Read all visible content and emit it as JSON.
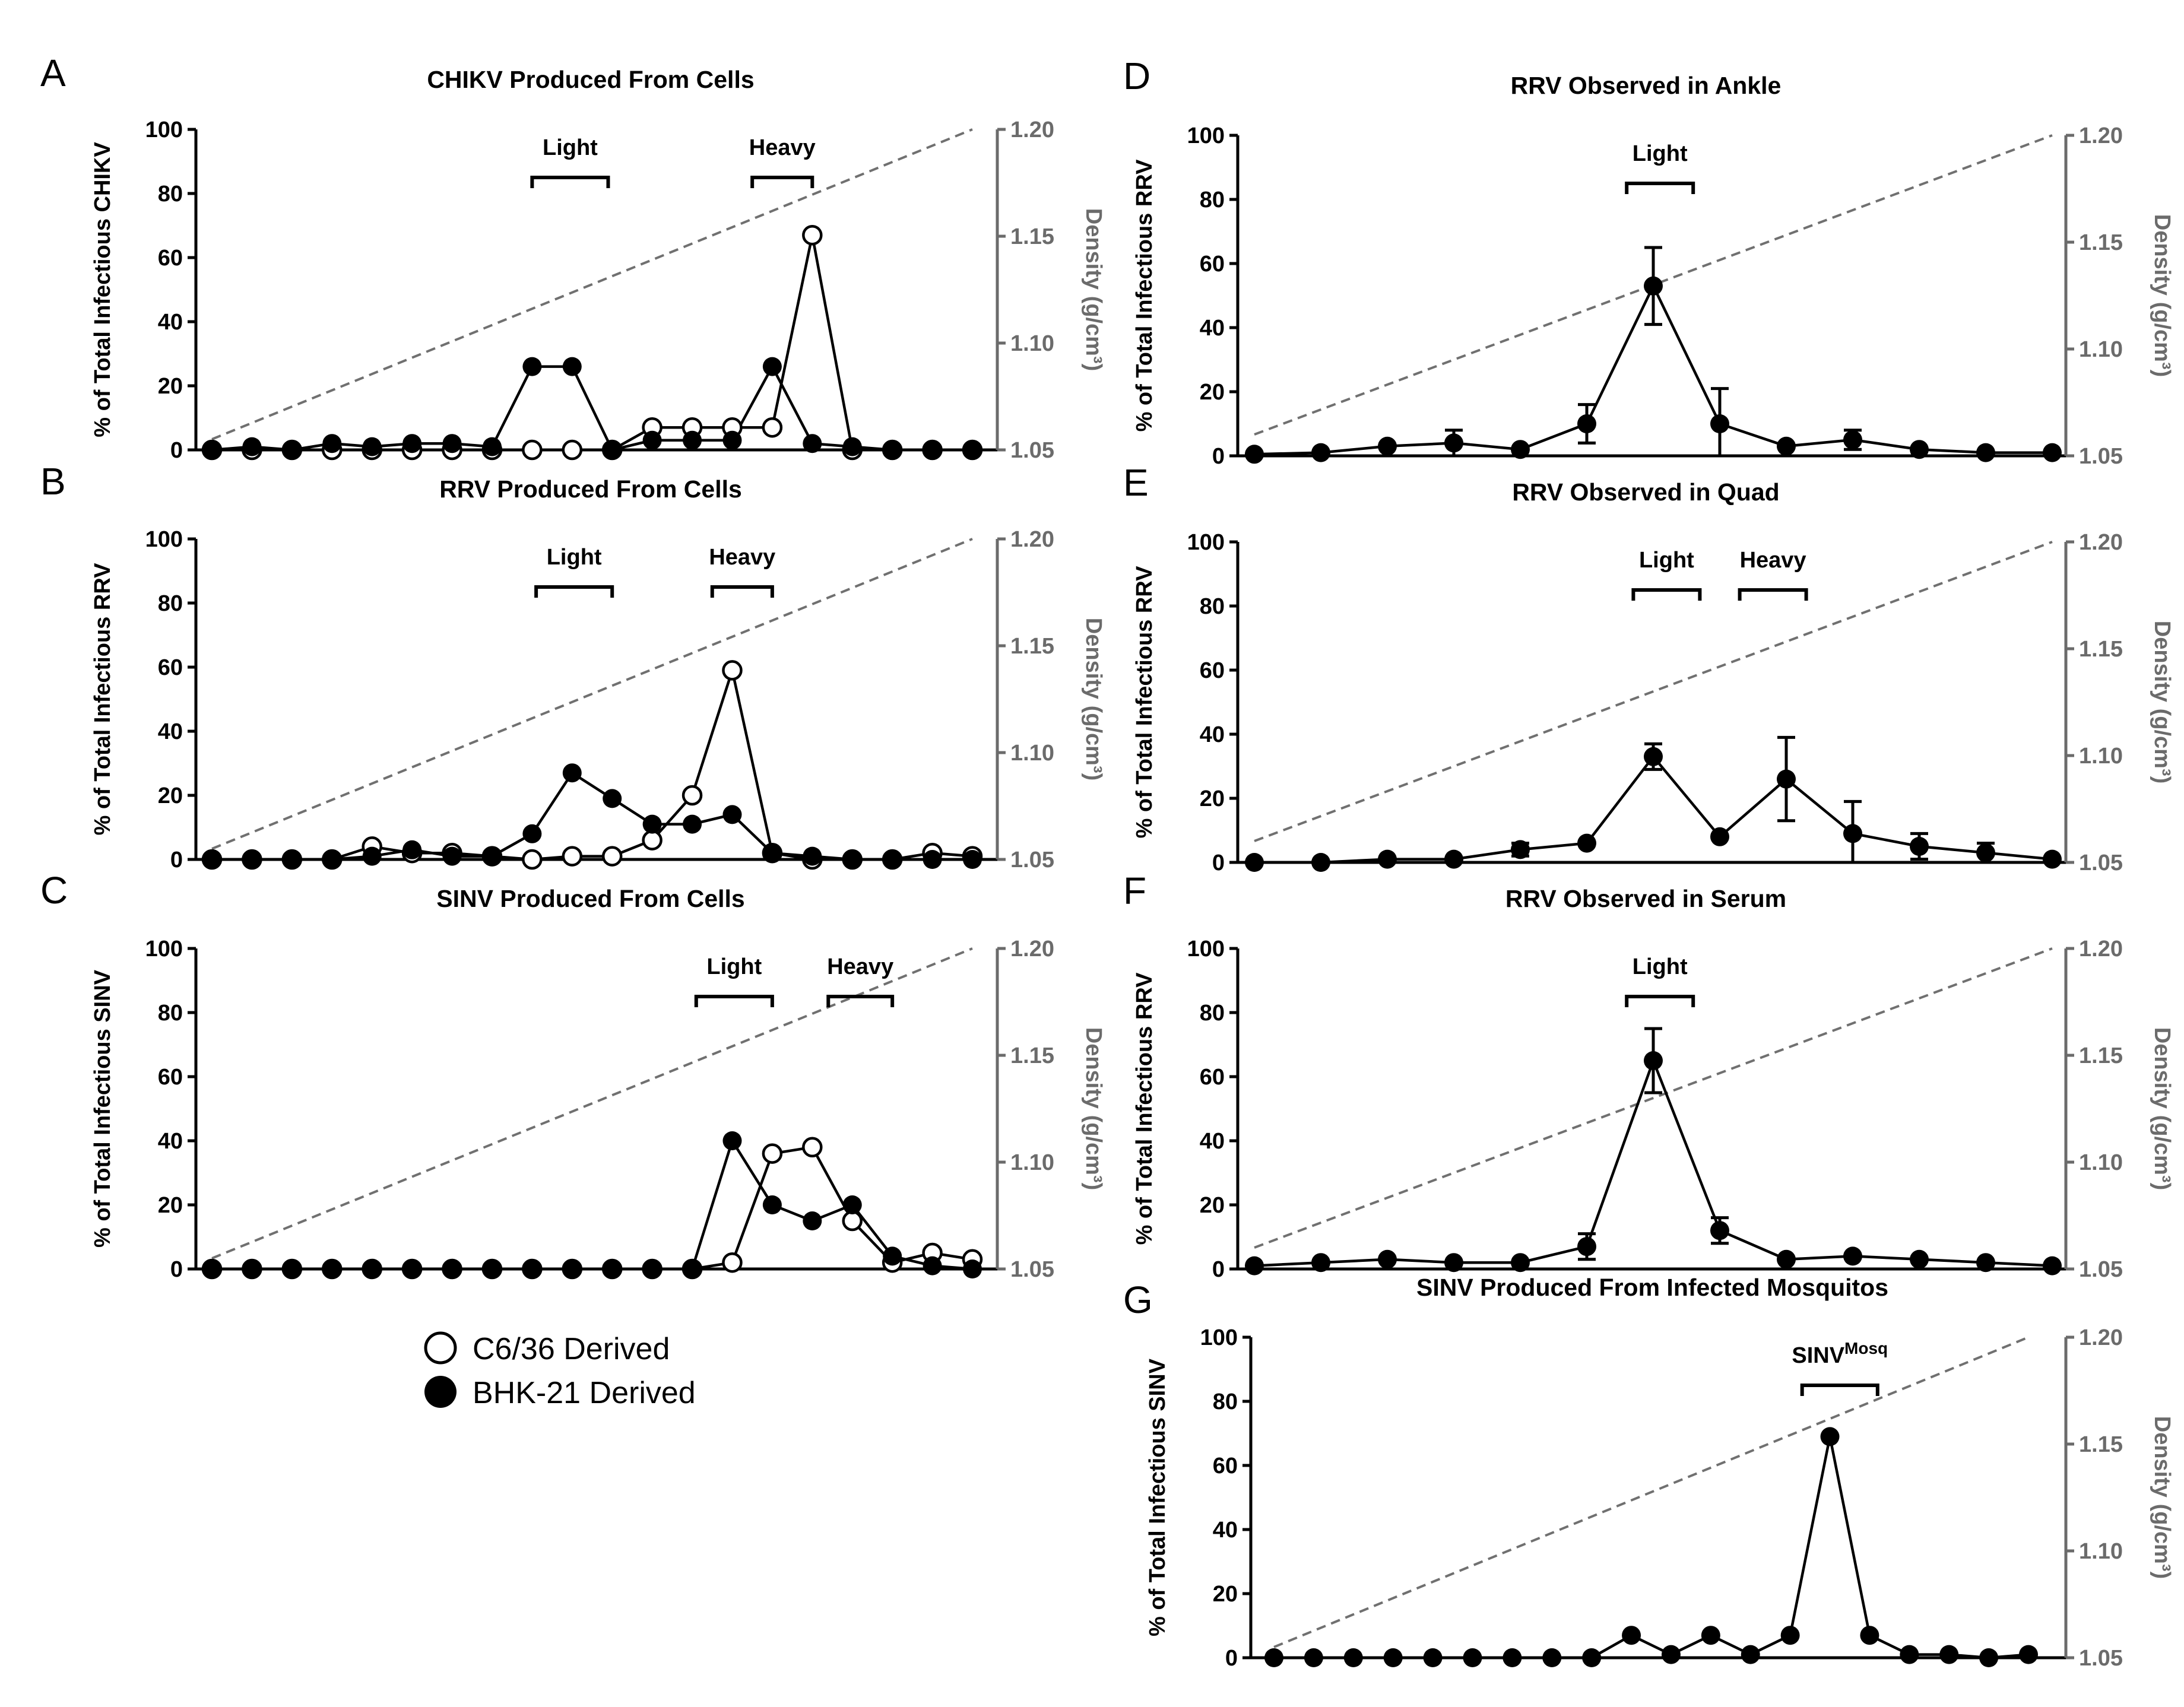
{
  "legend": [
    {
      "label": "C6/36 Derived",
      "style": "open"
    },
    {
      "label": "BHK-21 Derived",
      "style": "filled"
    }
  ],
  "chart_data": [
    {
      "id": "A",
      "type": "line",
      "title": "CHIKV Produced From Cells",
      "ylabel": "% of Total Infectious CHIKV",
      "y2label": "Density (g/cm³)",
      "ylim": [
        0,
        100
      ],
      "yticks": [
        0,
        20,
        40,
        60,
        80,
        100
      ],
      "y2lim": [
        1.05,
        1.2
      ],
      "y2ticks": [
        "1.05",
        "1.10",
        "1.15",
        "1.20"
      ],
      "fractions": 20,
      "density_line": [
        [
          1,
          1.055
        ],
        [
          20,
          1.2
        ]
      ],
      "brackets": [
        {
          "label": "Light",
          "from": 9,
          "to": 10.9
        },
        {
          "label": "Heavy",
          "from": 14.5,
          "to": 16
        }
      ],
      "series": [
        {
          "name": "C6/36 Derived",
          "style": "open",
          "values": [
            0,
            0,
            0,
            0,
            0,
            0,
            0,
            0,
            0,
            0,
            0,
            7,
            7,
            7,
            7,
            67,
            0,
            0,
            0,
            0
          ]
        },
        {
          "name": "BHK-21 Derived",
          "style": "filled",
          "values": [
            0,
            1,
            0,
            2,
            1,
            2,
            2,
            1,
            26,
            26,
            0,
            3,
            3,
            3,
            26,
            2,
            1,
            0,
            0,
            0
          ]
        }
      ]
    },
    {
      "id": "B",
      "type": "line",
      "title": "RRV Produced From Cells",
      "ylabel": "% of Total Infectious RRV",
      "y2label": "Density (g/cm³)",
      "ylim": [
        0,
        100
      ],
      "yticks": [
        0,
        20,
        40,
        60,
        80,
        100
      ],
      "y2lim": [
        1.05,
        1.2
      ],
      "y2ticks": [
        "1.05",
        "1.10",
        "1.15",
        "1.20"
      ],
      "fractions": 20,
      "density_line": [
        [
          1,
          1.055
        ],
        [
          20,
          1.2
        ]
      ],
      "brackets": [
        {
          "label": "Light",
          "from": 9.1,
          "to": 11
        },
        {
          "label": "Heavy",
          "from": 13.5,
          "to": 15
        }
      ],
      "series": [
        {
          "name": "C6/36 Derived",
          "style": "open",
          "values": [
            0,
            0,
            0,
            0,
            4,
            2,
            2,
            1,
            0,
            1,
            1,
            6,
            20,
            59,
            2,
            0,
            0,
            0,
            2,
            1
          ]
        },
        {
          "name": "BHK-21 Derived",
          "style": "filled",
          "values": [
            0,
            0,
            0,
            0,
            1,
            3,
            1,
            1,
            8,
            27,
            19,
            11,
            11,
            14,
            2,
            1,
            0,
            0,
            0,
            0
          ]
        }
      ]
    },
    {
      "id": "C",
      "type": "line",
      "title": "SINV Produced From Cells",
      "ylabel": "% of Total Infectious SINV",
      "y2label": "Density (g/cm³)",
      "ylim": [
        0,
        100
      ],
      "yticks": [
        0,
        20,
        40,
        60,
        80,
        100
      ],
      "y2lim": [
        1.05,
        1.2
      ],
      "y2ticks": [
        "1.05",
        "1.10",
        "1.15",
        "1.20"
      ],
      "fractions": 20,
      "density_line": [
        [
          1,
          1.055
        ],
        [
          20,
          1.2
        ]
      ],
      "brackets": [
        {
          "label": "Light",
          "from": 13.1,
          "to": 15
        },
        {
          "label": "Heavy",
          "from": 16.4,
          "to": 18
        }
      ],
      "series": [
        {
          "name": "C6/36 Derived",
          "style": "open",
          "values": [
            0,
            0,
            0,
            0,
            0,
            0,
            0,
            0,
            0,
            0,
            0,
            0,
            0,
            2,
            36,
            38,
            15,
            2,
            5,
            3
          ]
        },
        {
          "name": "BHK-21 Derived",
          "style": "filled",
          "values": [
            0,
            0,
            0,
            0,
            0,
            0,
            0,
            0,
            0,
            0,
            0,
            0,
            0,
            40,
            20,
            15,
            20,
            4,
            1,
            0
          ]
        }
      ]
    },
    {
      "id": "D",
      "type": "line",
      "title": "RRV Observed in Ankle",
      "ylabel": "% of Total Infectious RRV",
      "y2label": "Density (g/cm³)",
      "ylim": [
        0,
        100
      ],
      "yticks": [
        0,
        20,
        40,
        60,
        80,
        100
      ],
      "y2lim": [
        1.05,
        1.2
      ],
      "y2ticks": [
        "1.05",
        "1.10",
        "1.15",
        "1.20"
      ],
      "fractions": 13,
      "density_line": [
        [
          1,
          1.06
        ],
        [
          13,
          1.2
        ]
      ],
      "brackets": [
        {
          "label": "Light",
          "from": 6.6,
          "to": 7.6
        }
      ],
      "series": [
        {
          "name": "BHK-21 Derived",
          "style": "filled",
          "values": [
            0.5,
            1,
            3,
            4,
            2,
            10,
            53,
            10,
            3,
            5,
            2,
            1,
            1
          ],
          "errors": [
            0,
            0,
            0,
            4,
            0,
            6,
            12,
            11,
            0,
            3,
            0,
            0,
            0
          ]
        }
      ]
    },
    {
      "id": "E",
      "type": "line",
      "title": "RRV Observed in Quad",
      "ylabel": "% of Total Infectious RRV",
      "y2label": "Density (g/cm³)",
      "ylim": [
        0,
        100
      ],
      "yticks": [
        0,
        20,
        40,
        60,
        80,
        100
      ],
      "y2lim": [
        1.05,
        1.2
      ],
      "y2ticks": [
        "1.05",
        "1.10",
        "1.15",
        "1.20"
      ],
      "fractions": 13,
      "density_line": [
        [
          1,
          1.06
        ],
        [
          13,
          1.2
        ]
      ],
      "brackets": [
        {
          "label": "Light",
          "from": 6.7,
          "to": 7.7
        },
        {
          "label": "Heavy",
          "from": 8.3,
          "to": 9.3
        }
      ],
      "series": [
        {
          "name": "BHK-21 Derived",
          "style": "filled",
          "values": [
            0,
            0,
            1,
            1,
            4,
            6,
            33,
            8,
            26,
            9,
            5,
            3,
            1
          ],
          "errors": [
            0,
            0,
            0,
            0,
            2,
            0,
            4,
            0,
            13,
            10,
            4,
            3,
            0
          ]
        }
      ]
    },
    {
      "id": "F",
      "type": "line",
      "title": "RRV Observed in Serum",
      "ylabel": "% of Total Infectious RRV",
      "y2label": "Density (g/cm³)",
      "ylim": [
        0,
        100
      ],
      "yticks": [
        0,
        20,
        40,
        60,
        80,
        100
      ],
      "y2lim": [
        1.05,
        1.2
      ],
      "y2ticks": [
        "1.05",
        "1.10",
        "1.15",
        "1.20"
      ],
      "fractions": 13,
      "density_line": [
        [
          1,
          1.06
        ],
        [
          13,
          1.2
        ]
      ],
      "brackets": [
        {
          "label": "Light",
          "from": 6.6,
          "to": 7.6
        }
      ],
      "series": [
        {
          "name": "BHK-21 Derived",
          "style": "filled",
          "values": [
            1,
            2,
            3,
            2,
            2,
            7,
            65,
            12,
            3,
            4,
            3,
            2,
            1
          ],
          "errors": [
            0,
            0,
            0,
            0,
            0,
            4,
            10,
            4,
            0,
            0,
            0,
            0,
            0
          ]
        }
      ]
    },
    {
      "id": "G",
      "type": "line",
      "title": "SINV Produced From Infected Mosquitos",
      "ylabel": "% of Total Infectious SINV",
      "y2label": "Density (g/cm³)",
      "ylim": [
        0,
        100
      ],
      "yticks": [
        0,
        20,
        40,
        60,
        80,
        100
      ],
      "y2lim": [
        1.05,
        1.2
      ],
      "y2ticks": [
        "1.05",
        "1.10",
        "1.15",
        "1.20"
      ],
      "fractions": 20,
      "density_line": [
        [
          1,
          1.055
        ],
        [
          20,
          1.2
        ]
      ],
      "brackets": [
        {
          "label": "SINV",
          "sup": "Mosq",
          "from": 14.3,
          "to": 16.2
        }
      ],
      "series": [
        {
          "name": "BHK-21 Derived",
          "style": "filled",
          "values": [
            0,
            0,
            0,
            0,
            0,
            0,
            0,
            0,
            0,
            7,
            1,
            7,
            1,
            7,
            69,
            7,
            1,
            1,
            0,
            1
          ]
        }
      ]
    }
  ]
}
